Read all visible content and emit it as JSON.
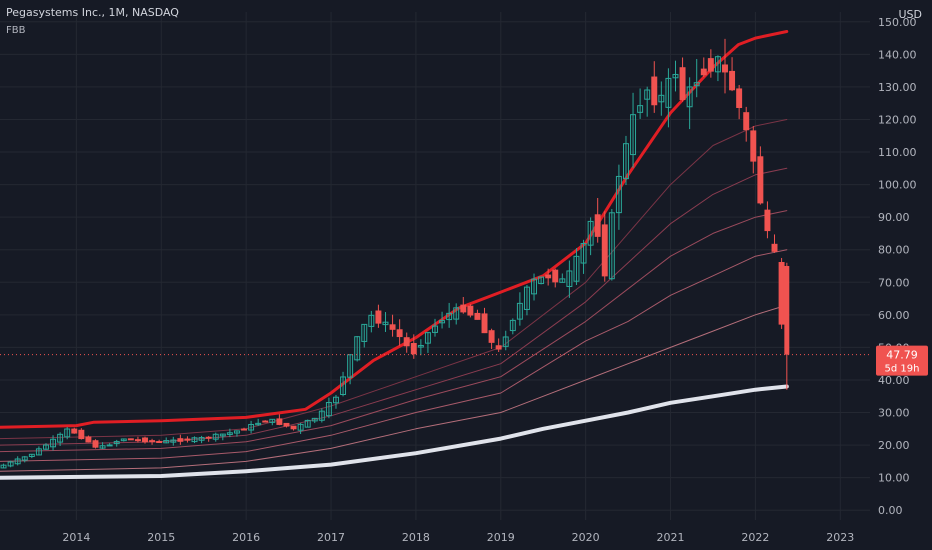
{
  "chart_data": {
    "type": "candlestick",
    "title": "Pegasystems Inc., 1M, NASDAQ",
    "indicator": "FBB",
    "currency": "USD",
    "ylim": [
      -3,
      153
    ],
    "y_ticks": [
      "0.00",
      "10.00",
      "20.00",
      "30.00",
      "40.00",
      "50.00",
      "60.00",
      "70.00",
      "80.00",
      "90.00",
      "100.00",
      "110.00",
      "120.00",
      "130.00",
      "140.00",
      "150.00"
    ],
    "x_ticks": [
      {
        "label": "2014",
        "t": 2014.0
      },
      {
        "label": "2015",
        "t": 2015.0
      },
      {
        "label": "2016",
        "t": 2016.0
      },
      {
        "label": "2017",
        "t": 2017.0
      },
      {
        "label": "2018",
        "t": 2018.0
      },
      {
        "label": "2019",
        "t": 2019.0
      },
      {
        "label": "2020",
        "t": 2020.0
      },
      {
        "label": "2021",
        "t": 2021.0
      },
      {
        "label": "2022",
        "t": 2022.0
      },
      {
        "label": "2023",
        "t": 2023.0
      }
    ],
    "xlim": [
      2013.1,
      2023.35
    ],
    "last_price": "47.79",
    "countdown": "5d 19h",
    "last_value": 47.79,
    "price_path": [
      {
        "t": 2013.1,
        "v": 13
      },
      {
        "t": 2013.5,
        "v": 17
      },
      {
        "t": 2013.8,
        "v": 22
      },
      {
        "t": 2013.95,
        "v": 25
      },
      {
        "t": 2014.3,
        "v": 19
      },
      {
        "t": 2014.6,
        "v": 22
      },
      {
        "t": 2015.0,
        "v": 21
      },
      {
        "t": 2015.5,
        "v": 22
      },
      {
        "t": 2015.9,
        "v": 24
      },
      {
        "t": 2016.3,
        "v": 28
      },
      {
        "t": 2016.6,
        "v": 25
      },
      {
        "t": 2016.9,
        "v": 29
      },
      {
        "t": 2017.1,
        "v": 35
      },
      {
        "t": 2017.3,
        "v": 50
      },
      {
        "t": 2017.5,
        "v": 60
      },
      {
        "t": 2017.8,
        "v": 55
      },
      {
        "t": 2018.0,
        "v": 48
      },
      {
        "t": 2018.2,
        "v": 55
      },
      {
        "t": 2018.4,
        "v": 60
      },
      {
        "t": 2018.6,
        "v": 62
      },
      {
        "t": 2018.8,
        "v": 58
      },
      {
        "t": 2019.0,
        "v": 48
      },
      {
        "t": 2019.2,
        "v": 60
      },
      {
        "t": 2019.4,
        "v": 70
      },
      {
        "t": 2019.6,
        "v": 72
      },
      {
        "t": 2019.8,
        "v": 70
      },
      {
        "t": 2020.0,
        "v": 80
      },
      {
        "t": 2020.15,
        "v": 93
      },
      {
        "t": 2020.25,
        "v": 70
      },
      {
        "t": 2020.4,
        "v": 100
      },
      {
        "t": 2020.6,
        "v": 120
      },
      {
        "t": 2020.75,
        "v": 130
      },
      {
        "t": 2020.9,
        "v": 125
      },
      {
        "t": 2021.1,
        "v": 135
      },
      {
        "t": 2021.2,
        "v": 125
      },
      {
        "t": 2021.4,
        "v": 135
      },
      {
        "t": 2021.6,
        "v": 138
      },
      {
        "t": 2021.8,
        "v": 128
      },
      {
        "t": 2022.0,
        "v": 110
      },
      {
        "t": 2022.1,
        "v": 95
      },
      {
        "t": 2022.2,
        "v": 82
      },
      {
        "t": 2022.3,
        "v": 76
      },
      {
        "t": 2022.37,
        "v": 48
      }
    ],
    "bands": [
      {
        "name": "basis",
        "color": "#e0e3eb",
        "width": 4,
        "points": [
          [
            2013.1,
            10
          ],
          [
            2015,
            10.5
          ],
          [
            2016,
            12
          ],
          [
            2017,
            14
          ],
          [
            2018,
            17.5
          ],
          [
            2019,
            22
          ],
          [
            2019.5,
            25
          ],
          [
            2020,
            27.5
          ],
          [
            2020.5,
            30
          ],
          [
            2021,
            33
          ],
          [
            2021.5,
            35
          ],
          [
            2022,
            37
          ],
          [
            2022.37,
            38
          ]
        ]
      },
      {
        "name": "band-1",
        "color": "#b46e7a",
        "width": 1,
        "points": [
          [
            2013.1,
            12
          ],
          [
            2015,
            13
          ],
          [
            2016,
            15
          ],
          [
            2017,
            19
          ],
          [
            2018,
            25
          ],
          [
            2019,
            30
          ],
          [
            2020,
            40
          ],
          [
            2020.5,
            45
          ],
          [
            2021,
            50
          ],
          [
            2021.5,
            55
          ],
          [
            2022,
            60
          ],
          [
            2022.37,
            63
          ]
        ]
      },
      {
        "name": "band-2",
        "color": "#a85a6a",
        "width": 1,
        "points": [
          [
            2013.1,
            15
          ],
          [
            2015,
            16
          ],
          [
            2016,
            18
          ],
          [
            2017,
            23
          ],
          [
            2018,
            30
          ],
          [
            2019,
            36
          ],
          [
            2020,
            52
          ],
          [
            2020.5,
            58
          ],
          [
            2021,
            66
          ],
          [
            2021.5,
            72
          ],
          [
            2022,
            78
          ],
          [
            2022.37,
            80
          ]
        ]
      },
      {
        "name": "band-3",
        "color": "#9a4a5c",
        "width": 1,
        "points": [
          [
            2013.1,
            18
          ],
          [
            2015,
            19
          ],
          [
            2016,
            21
          ],
          [
            2017,
            26
          ],
          [
            2018,
            34
          ],
          [
            2019,
            41
          ],
          [
            2020,
            58
          ],
          [
            2020.5,
            68
          ],
          [
            2021,
            78
          ],
          [
            2021.5,
            85
          ],
          [
            2022,
            90
          ],
          [
            2022.37,
            92
          ]
        ]
      },
      {
        "name": "band-4",
        "color": "#8a3c50",
        "width": 1,
        "points": [
          [
            2013.1,
            20
          ],
          [
            2015,
            21
          ],
          [
            2016,
            23
          ],
          [
            2017,
            29
          ],
          [
            2018,
            37
          ],
          [
            2019,
            45
          ],
          [
            2020,
            64
          ],
          [
            2020.5,
            76
          ],
          [
            2021,
            88
          ],
          [
            2021.5,
            97
          ],
          [
            2022,
            103
          ],
          [
            2022.37,
            105
          ]
        ]
      },
      {
        "name": "band-5",
        "color": "#7a3446",
        "width": 1,
        "points": [
          [
            2013.1,
            22
          ],
          [
            2015,
            23
          ],
          [
            2016,
            25
          ],
          [
            2017,
            32
          ],
          [
            2018,
            41
          ],
          [
            2019,
            50
          ],
          [
            2020,
            70
          ],
          [
            2020.5,
            85
          ],
          [
            2021,
            100
          ],
          [
            2021.5,
            112
          ],
          [
            2022,
            118
          ],
          [
            2022.37,
            120
          ]
        ]
      },
      {
        "name": "upper",
        "color": "#e01e24",
        "width": 3,
        "points": [
          [
            2013.1,
            25.5
          ],
          [
            2014,
            26
          ],
          [
            2014.2,
            27
          ],
          [
            2015,
            27.5
          ],
          [
            2016,
            28.5
          ],
          [
            2016.7,
            31
          ],
          [
            2017,
            36
          ],
          [
            2017.5,
            46
          ],
          [
            2018,
            53
          ],
          [
            2018.5,
            62
          ],
          [
            2019,
            67
          ],
          [
            2019.5,
            72
          ],
          [
            2020,
            82
          ],
          [
            2020.5,
            103
          ],
          [
            2021,
            122
          ],
          [
            2021.5,
            136
          ],
          [
            2021.8,
            143
          ],
          [
            2022,
            145
          ],
          [
            2022.37,
            147
          ]
        ]
      }
    ]
  }
}
